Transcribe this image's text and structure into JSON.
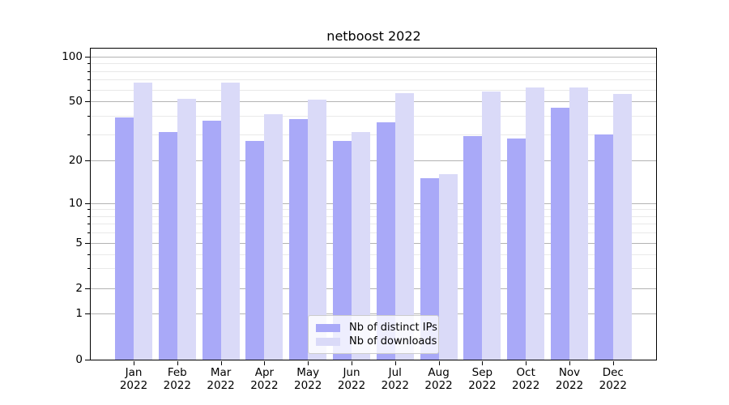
{
  "chart_data": {
    "type": "bar",
    "title": "netboost 2022",
    "categories": [
      "Jan",
      "Feb",
      "Mar",
      "Apr",
      "May",
      "Jun",
      "Jul",
      "Aug",
      "Sep",
      "Oct",
      "Nov",
      "Dec"
    ],
    "category_year": "2022",
    "series": [
      {
        "name": "Nb of distinct IPs",
        "color": "#a9a9f8",
        "values": [
          39,
          31,
          37,
          27,
          38,
          27,
          36,
          15,
          29,
          28,
          45,
          30
        ]
      },
      {
        "name": "Nb of downloads",
        "color": "#dadaf8",
        "values": [
          67,
          52,
          67,
          41,
          51,
          31,
          57,
          16,
          58,
          62,
          62,
          56
        ]
      }
    ],
    "yscale": "symlog",
    "xlabel": "",
    "ylabel": "",
    "y_major_ticks": [
      100,
      50,
      20,
      10,
      5,
      2,
      1,
      0
    ],
    "y_minor_ticks": [
      90,
      80,
      70,
      60,
      40,
      30,
      9,
      8,
      7,
      6,
      4,
      3
    ],
    "ylim": [
      0,
      115
    ],
    "grid": "both",
    "grid_major_color": "#b3b3b3",
    "grid_minor_color": "#e9e9e9",
    "legend_position": "lower center"
  }
}
